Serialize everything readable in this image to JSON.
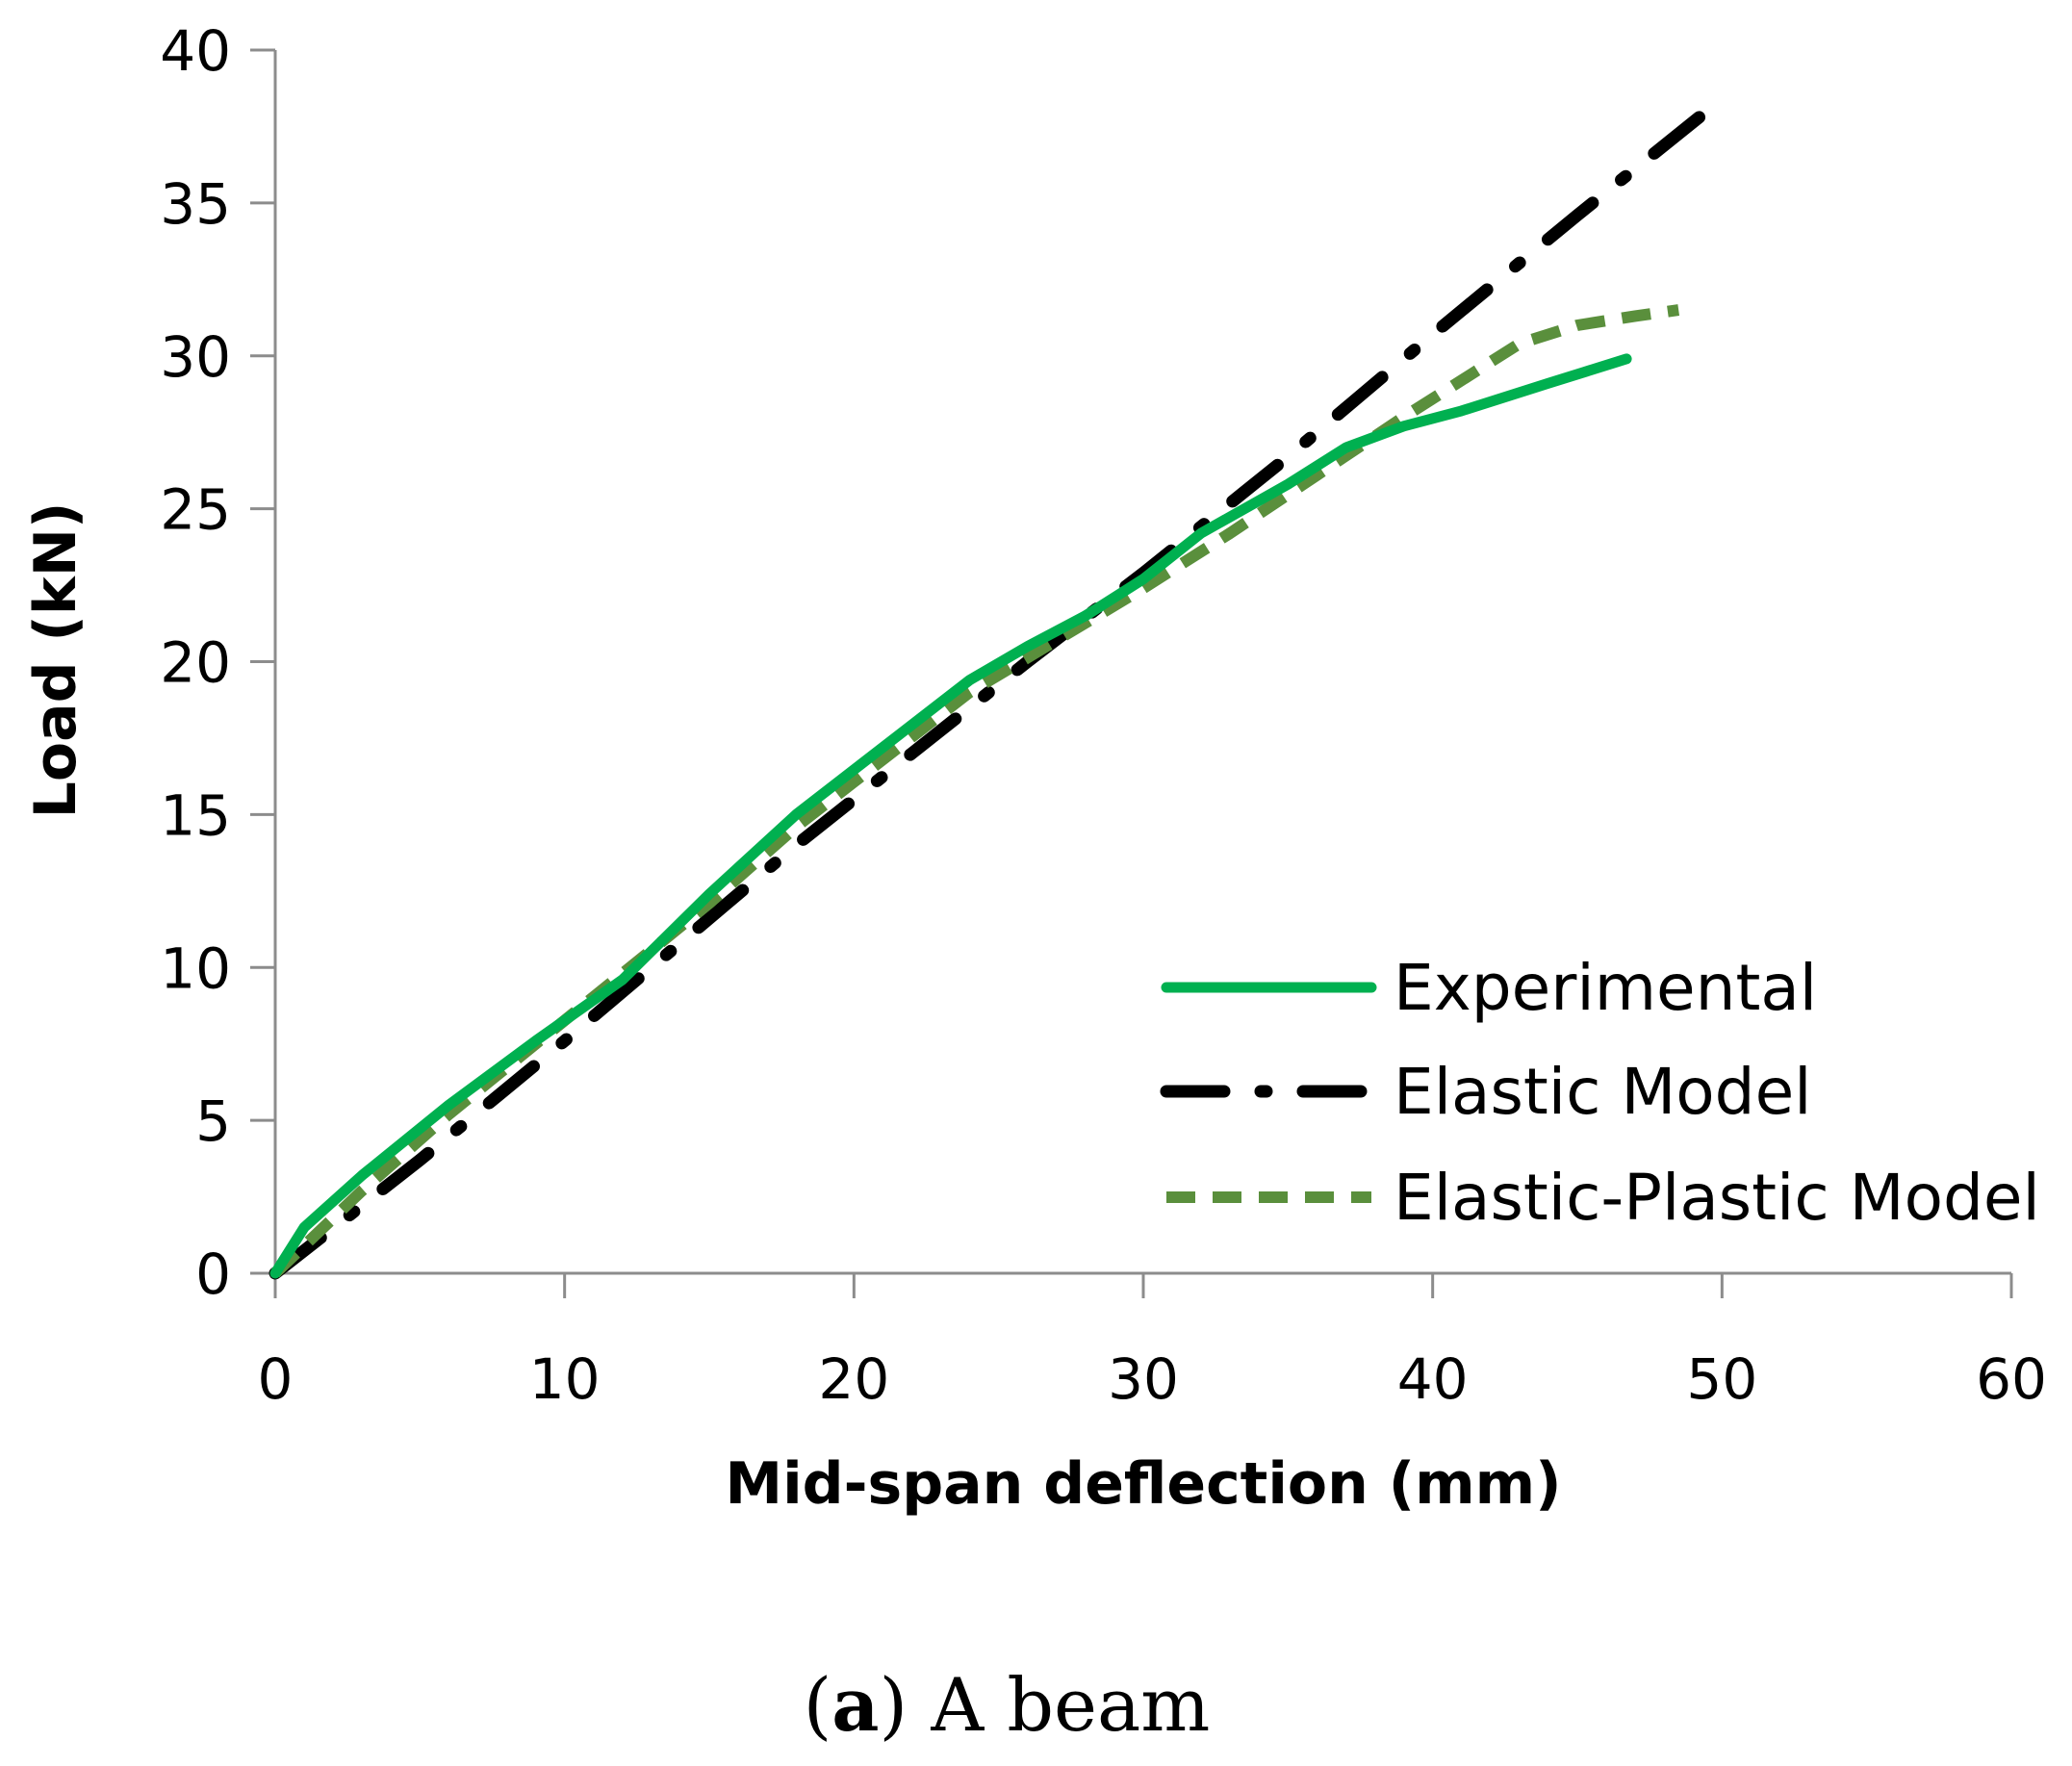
{
  "chart_data": {
    "type": "line",
    "title": "",
    "xlabel": "Mid-span deflection (mm)",
    "ylabel": "Load (kN)",
    "xlim": [
      0,
      60
    ],
    "ylim": [
      0,
      40
    ],
    "xticks": [
      "0",
      "10",
      "20",
      "30",
      "40",
      "50",
      "60"
    ],
    "yticks": [
      "0",
      "5",
      "10",
      "15",
      "20",
      "25",
      "30",
      "35",
      "40"
    ],
    "grid": false,
    "legend_position": "bottom-right",
    "series": [
      {
        "name": "Experimental",
        "color": "#00b050",
        "style": "solid",
        "x": [
          0,
          1,
          3,
          6,
          9,
          12,
          15,
          18,
          21,
          24,
          26,
          28,
          30,
          32,
          35,
          37,
          39,
          41,
          44,
          46.7
        ],
        "y": [
          0,
          1.5,
          3.2,
          5.5,
          7.6,
          9.6,
          12.4,
          15.0,
          17.2,
          19.4,
          20.5,
          21.5,
          22.7,
          24.2,
          25.8,
          27.0,
          27.7,
          28.2,
          29.1,
          29.9
        ]
      },
      {
        "name": "Elastic Model",
        "color": "#000000",
        "style": "dash-dot",
        "x": [
          0,
          5,
          10,
          14,
          18,
          22,
          26,
          30,
          35,
          40,
          45,
          49.6
        ],
        "y": [
          0,
          3.7,
          7.6,
          10.8,
          14.0,
          17.0,
          20.0,
          22.9,
          26.7,
          30.7,
          34.6,
          38.1
        ]
      },
      {
        "name": "Elastic-Plastic Model",
        "color": "#5a8f3c",
        "style": "dashed",
        "x": [
          0,
          3,
          6,
          9,
          12,
          15,
          18,
          21,
          24,
          27,
          30,
          33,
          36,
          39,
          41,
          43,
          45,
          47,
          48.5
        ],
        "y": [
          0,
          2.7,
          5.2,
          7.5,
          9.8,
          12.1,
          14.6,
          16.8,
          19.0,
          20.7,
          22.4,
          24.2,
          26.1,
          28.0,
          29.2,
          30.4,
          31.0,
          31.3,
          31.5
        ]
      }
    ]
  },
  "caption": {
    "letter": "a",
    "text": " A beam"
  }
}
